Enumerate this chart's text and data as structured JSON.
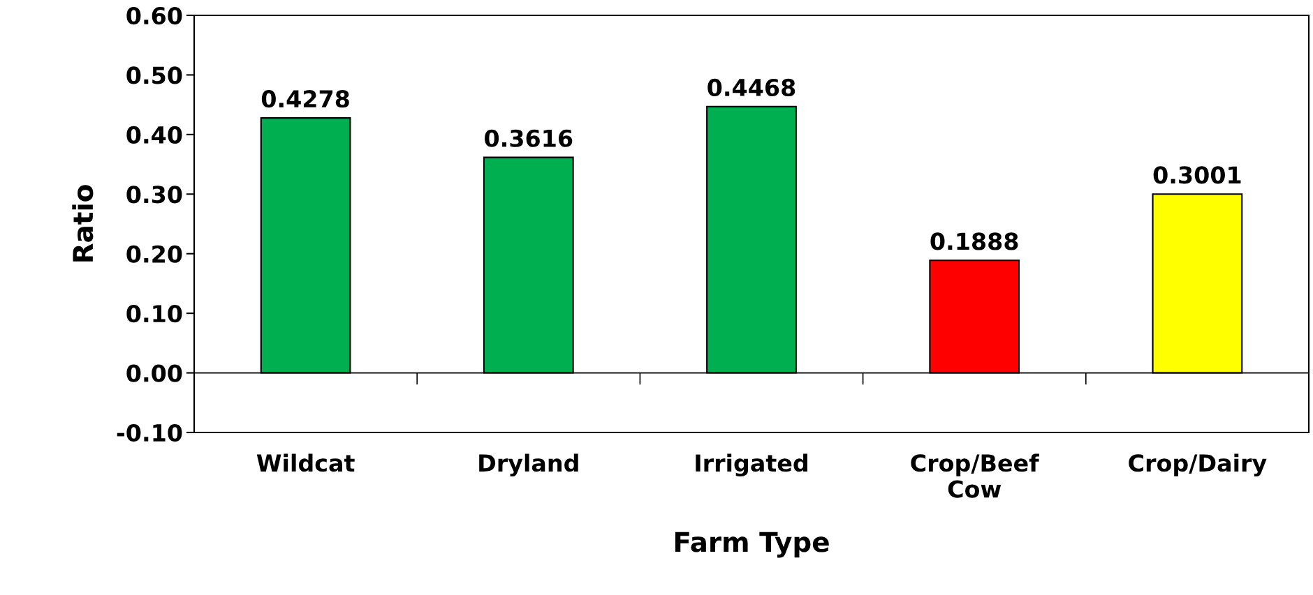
{
  "chart_data": {
    "type": "bar",
    "xlabel": "Farm Type",
    "ylabel": "Ratio",
    "categories": [
      "Wildcat",
      "Dryland",
      "Irrigated",
      "Crop/Beef\nCow",
      "Crop/Dairy"
    ],
    "values": [
      0.4278,
      0.3616,
      0.4468,
      0.1888,
      0.3001
    ],
    "colors": [
      "#00b050",
      "#00b050",
      "#00b050",
      "#ff0000",
      "#ffff00"
    ],
    "data_labels": true,
    "ylim": [
      -0.1,
      0.6
    ],
    "yticks": [
      {
        "value": -0.1,
        "label": "-0.10"
      },
      {
        "value": 0,
        "label": "0.00"
      },
      {
        "value": 0.1,
        "label": "0.10"
      },
      {
        "value": 0.2,
        "label": "0.20"
      },
      {
        "value": 0.3,
        "label": "0.30"
      },
      {
        "value": 0.4,
        "label": "0.40"
      },
      {
        "value": 0.5,
        "label": "0.50"
      },
      {
        "value": 0.6,
        "label": "0.60"
      }
    ],
    "legend": false
  }
}
